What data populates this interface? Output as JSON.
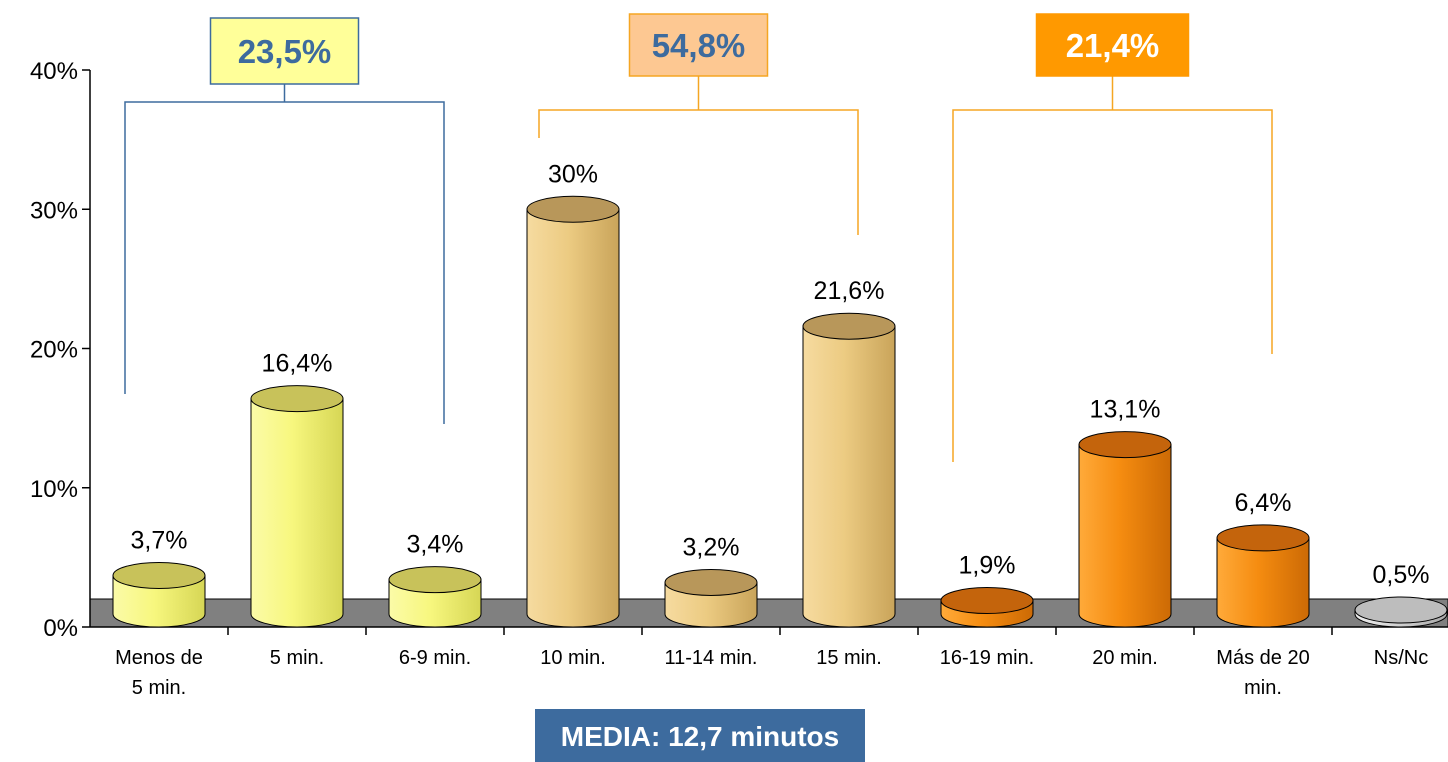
{
  "chart_data": {
    "type": "bar",
    "style": "3d-cylinder",
    "categories": [
      "Menos de 5 min.",
      "5 min.",
      "6-9 min.",
      "10 min.",
      "11-14 min.",
      "15 min.",
      "16-19 min.",
      "20 min.",
      "Más de 20 min.",
      "Ns/Nc"
    ],
    "category_lines": [
      [
        "Menos de",
        "5 min."
      ],
      [
        "5 min."
      ],
      [
        "6-9 min."
      ],
      [
        "10 min."
      ],
      [
        "11-14 min."
      ],
      [
        "15 min."
      ],
      [
        "16-19 min."
      ],
      [
        "20 min."
      ],
      [
        "Más de 20",
        "min."
      ],
      [
        "Ns/Nc"
      ]
    ],
    "values": [
      3.7,
      16.4,
      3.4,
      30,
      3.2,
      21.6,
      1.9,
      13.1,
      6.4,
      0.5
    ],
    "data_labels": [
      "3,7%",
      "16,4%",
      "3,4%",
      "30%",
      "3,2%",
      "21,6%",
      "1,9%",
      "13,1%",
      "6,4%",
      "0,5%"
    ],
    "ylim": [
      0,
      40
    ],
    "yticks": [
      0,
      10,
      20,
      30,
      40
    ],
    "ytick_labels": [
      "0%",
      "10%",
      "20%",
      "30%",
      "40%"
    ],
    "grid": false,
    "floor_color": "#808080",
    "bar_colors": [
      "#f2f27a",
      "#f2f27a",
      "#f2f27a",
      "#ecc97a",
      "#ecc97a",
      "#ecc97a",
      "#f08a0e",
      "#f08a0e",
      "#f08a0e",
      "#c8c8c8"
    ],
    "groups": [
      {
        "label": "23,5%",
        "from": 0,
        "to": 2,
        "line_color": "#3d6b9e",
        "box_fill": "#ffff99",
        "box_stroke": "#3d6b9e",
        "text_color": "#3d6b9e"
      },
      {
        "label": "54,8%",
        "from": 3,
        "to": 5,
        "line_color": "#f5a623",
        "box_fill": "#fdc892",
        "box_stroke": "#f5a623",
        "text_color": "#3d6b9e"
      },
      {
        "label": "21,4%",
        "from": 6,
        "to": 8,
        "line_color": "#f5a623",
        "box_fill": "#ff9900",
        "box_stroke": "#ff9900",
        "text_color": "#ffffff"
      }
    ],
    "annotation": {
      "text": "MEDIA: 12,7 minutos",
      "fill": "#3d6b9e"
    }
  }
}
